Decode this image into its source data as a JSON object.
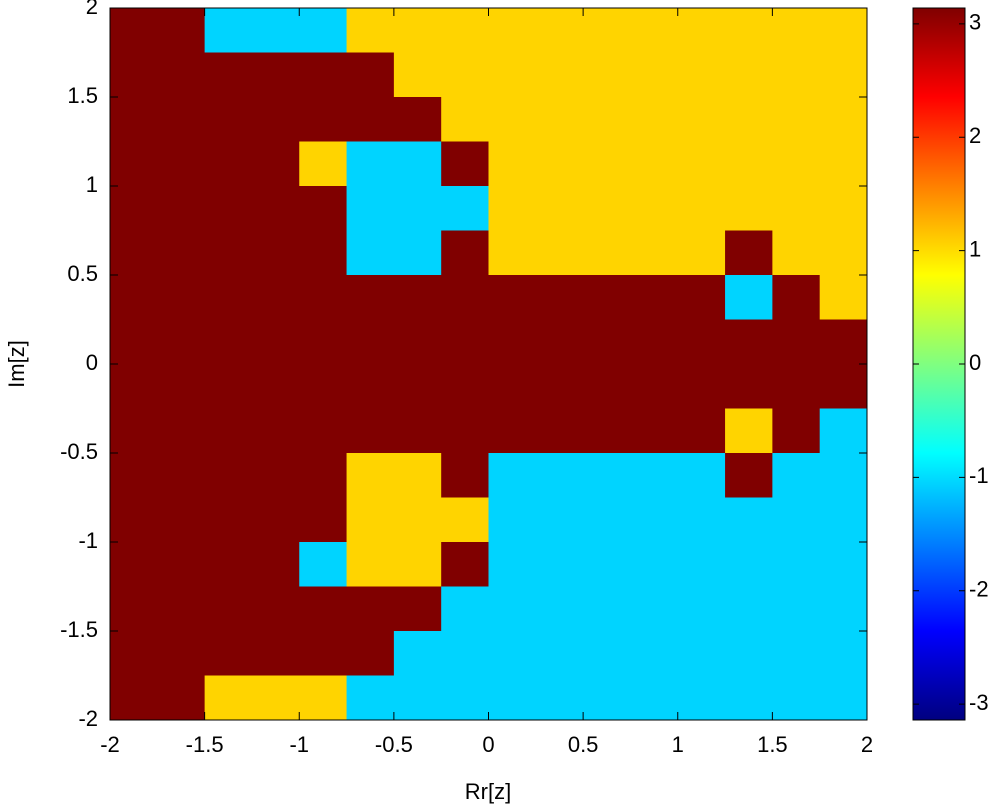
{
  "chart_data": {
    "type": "heatmap",
    "x": [
      -1.875,
      -1.625,
      -1.375,
      -1.125,
      -0.875,
      -0.625,
      -0.375,
      -0.125,
      0.125,
      0.375,
      0.625,
      0.875,
      1.125,
      1.375,
      1.625,
      1.875
    ],
    "y": [
      1.875,
      1.625,
      1.375,
      1.125,
      0.875,
      0.625,
      0.375,
      0.125,
      -0.125,
      -0.375,
      -0.625,
      -0.875,
      -1.125,
      -1.375,
      -1.625,
      -1.875
    ],
    "z": [
      [
        3.14,
        3.14,
        -1.05,
        -1.05,
        -1.05,
        1.05,
        1.05,
        1.05,
        1.05,
        1.05,
        1.05,
        1.05,
        1.05,
        1.05,
        1.05,
        1.05
      ],
      [
        3.14,
        3.14,
        3.14,
        3.14,
        3.14,
        3.14,
        1.05,
        1.05,
        1.05,
        1.05,
        1.05,
        1.05,
        1.05,
        1.05,
        1.05,
        1.05
      ],
      [
        3.14,
        3.14,
        3.14,
        3.14,
        3.14,
        3.14,
        3.14,
        1.05,
        1.05,
        1.05,
        1.05,
        1.05,
        1.05,
        1.05,
        1.05,
        1.05
      ],
      [
        3.14,
        3.14,
        3.14,
        3.14,
        1.05,
        -1.05,
        -1.05,
        3.14,
        1.05,
        1.05,
        1.05,
        1.05,
        1.05,
        1.05,
        1.05,
        1.05
      ],
      [
        3.14,
        3.14,
        3.14,
        3.14,
        3.14,
        -1.05,
        -1.05,
        -1.05,
        1.05,
        1.05,
        1.05,
        1.05,
        1.05,
        1.05,
        1.05,
        1.05
      ],
      [
        3.14,
        3.14,
        3.14,
        3.14,
        3.14,
        -1.05,
        -1.05,
        3.14,
        1.05,
        1.05,
        1.05,
        1.05,
        1.05,
        3.14,
        1.05,
        1.05
      ],
      [
        3.14,
        3.14,
        3.14,
        3.14,
        3.14,
        3.14,
        3.14,
        3.14,
        3.14,
        3.14,
        3.14,
        3.14,
        3.14,
        -1.05,
        3.14,
        1.05
      ],
      [
        3.14,
        3.14,
        3.14,
        3.14,
        3.14,
        3.14,
        3.14,
        3.14,
        3.14,
        3.14,
        3.14,
        3.14,
        3.14,
        3.14,
        3.14,
        3.14
      ],
      [
        3.14,
        3.14,
        3.14,
        3.14,
        3.14,
        3.14,
        3.14,
        3.14,
        3.14,
        3.14,
        3.14,
        3.14,
        3.14,
        3.14,
        3.14,
        3.14
      ],
      [
        3.14,
        3.14,
        3.14,
        3.14,
        3.14,
        3.14,
        3.14,
        3.14,
        3.14,
        3.14,
        3.14,
        3.14,
        3.14,
        1.05,
        3.14,
        -1.05
      ],
      [
        3.14,
        3.14,
        3.14,
        3.14,
        3.14,
        1.05,
        1.05,
        3.14,
        -1.05,
        -1.05,
        -1.05,
        -1.05,
        -1.05,
        3.14,
        -1.05,
        -1.05
      ],
      [
        3.14,
        3.14,
        3.14,
        3.14,
        3.14,
        1.05,
        1.05,
        1.05,
        -1.05,
        -1.05,
        -1.05,
        -1.05,
        -1.05,
        -1.05,
        -1.05,
        -1.05
      ],
      [
        3.14,
        3.14,
        3.14,
        3.14,
        -1.05,
        1.05,
        1.05,
        3.14,
        -1.05,
        -1.05,
        -1.05,
        -1.05,
        -1.05,
        -1.05,
        -1.05,
        -1.05
      ],
      [
        3.14,
        3.14,
        3.14,
        3.14,
        3.14,
        3.14,
        3.14,
        -1.05,
        -1.05,
        -1.05,
        -1.05,
        -1.05,
        -1.05,
        -1.05,
        -1.05,
        -1.05
      ],
      [
        3.14,
        3.14,
        3.14,
        3.14,
        3.14,
        3.14,
        -1.05,
        -1.05,
        -1.05,
        -1.05,
        -1.05,
        -1.05,
        -1.05,
        -1.05,
        -1.05,
        -1.05
      ],
      [
        3.14,
        3.14,
        1.05,
        1.05,
        1.05,
        -1.05,
        -1.05,
        -1.05,
        -1.05,
        -1.05,
        -1.05,
        -1.05,
        -1.05,
        -1.05,
        -1.05,
        -1.05
      ]
    ],
    "xlim": [
      -2,
      2
    ],
    "ylim": [
      -2,
      2
    ],
    "xticks": [
      -2,
      -1.5,
      -1,
      -0.5,
      0,
      0.5,
      1,
      1.5,
      2
    ],
    "yticks": [
      -2,
      -1.5,
      -1,
      -0.5,
      0,
      0.5,
      1,
      1.5,
      2
    ],
    "xlabel": "Rr[z]",
    "ylabel": "Im[z]",
    "colormap": "jet",
    "clim": [
      -3.14,
      3.14
    ],
    "cticks": [
      -3,
      -2,
      -1,
      0,
      1,
      2,
      3
    ]
  }
}
